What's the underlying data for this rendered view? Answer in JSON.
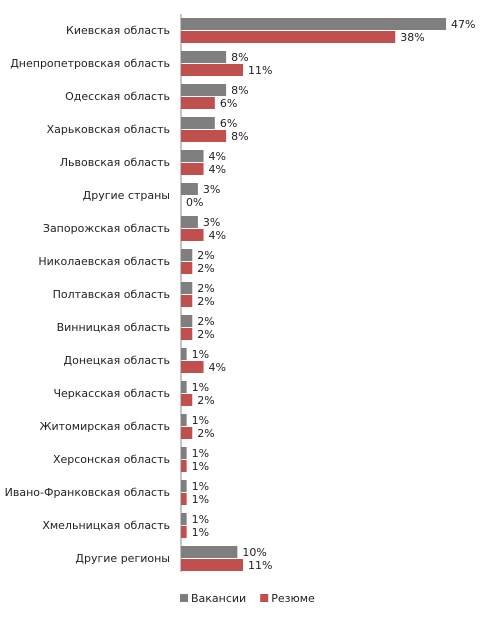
{
  "chart_data": {
    "type": "bar",
    "orientation": "horizontal",
    "categories": [
      "Киевская область",
      "Днепропетровская  область",
      "Одесская область",
      "Харьковская область",
      "Львовская область",
      "Другие страны",
      "Запорожская область",
      "Николаевская область",
      "Полтавская область",
      "Винницкая область",
      "Донецкая  область",
      "Черкасская область",
      "Житомирская область",
      "Херсонская область",
      "Ивано-Франковская область",
      "Хмельницкая область",
      "Другие регионы"
    ],
    "series": [
      {
        "name": "Вакансии",
        "color": "#7f7f7f",
        "values": [
          47,
          8,
          8,
          6,
          4,
          3,
          3,
          2,
          2,
          2,
          1,
          1,
          1,
          1,
          1,
          1,
          10
        ],
        "value_labels": [
          "47%",
          "8%",
          "8%",
          "6%",
          "4%",
          "3%",
          "3%",
          "2%",
          "2%",
          "2%",
          "1%",
          "1%",
          "1%",
          "1%",
          "1%",
          "1%",
          "10%"
        ]
      },
      {
        "name": "Резюме",
        "color": "#c0504d",
        "values": [
          38,
          11,
          6,
          8,
          4,
          0,
          4,
          2,
          2,
          2,
          4,
          2,
          2,
          1,
          1,
          1,
          11
        ],
        "value_labels": [
          "38%",
          "11%",
          "6%",
          "8%",
          "4%",
          "0%",
          "4%",
          "2%",
          "2%",
          "2%",
          "4%",
          "2%",
          "2%",
          "1%",
          "1%",
          "1%",
          "11%"
        ]
      }
    ],
    "legend": "bottom"
  }
}
